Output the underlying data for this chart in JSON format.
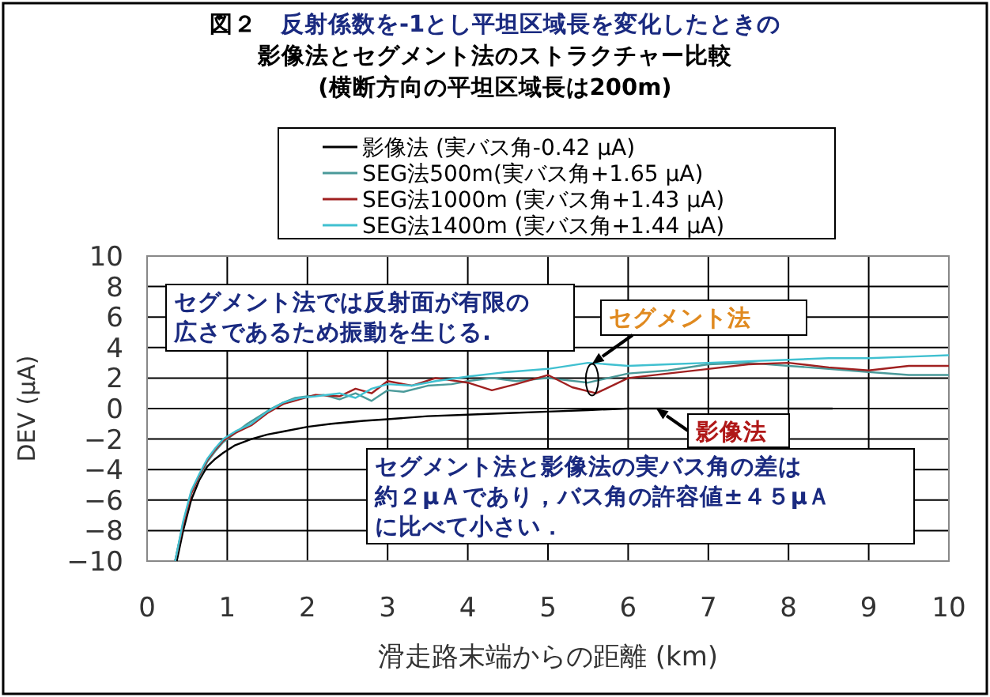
{
  "chart_data": {
    "type": "line",
    "title": "図２　反射係数を-1とし平坦区域長を変化したときの影像法とセグメント法のストラクチャー比較",
    "subtitle": "(横断方向の平坦区域長は200m)",
    "xlabel": "滑走路末端からの距離 (km)",
    "ylabel": "DEV (μA)",
    "xlim": [
      0,
      10
    ],
    "xticks": [
      0,
      1,
      2,
      3,
      4,
      5,
      6,
      7,
      8,
      9,
      10
    ],
    "ylim": [
      -10,
      10
    ],
    "yticks": [
      -10,
      -8,
      -6,
      -4,
      -2,
      0,
      2,
      4,
      6,
      8,
      10
    ],
    "grid": true,
    "legend": "top",
    "marker": "none",
    "line_style": "solid",
    "series": [
      {
        "name": "影像法 (実バス角-0.42 μA)",
        "color": "#000000",
        "x": [
          0.37,
          0.45,
          0.55,
          0.65,
          0.75,
          0.85,
          0.95,
          1.1,
          1.3,
          1.5,
          1.7,
          2.0,
          2.3,
          2.7,
          3.0,
          3.5,
          4.0,
          4.5,
          5.0,
          5.5,
          6.0,
          7.0,
          8.0,
          8.55
        ],
        "values": [
          -10,
          -8,
          -6,
          -4.7,
          -3.8,
          -3.3,
          -2.9,
          -2.4,
          -2.0,
          -1.7,
          -1.5,
          -1.2,
          -1.0,
          -0.8,
          -0.7,
          -0.5,
          -0.4,
          -0.3,
          -0.2,
          -0.1,
          0,
          0,
          0,
          0
        ]
      },
      {
        "name": "SEG法500m(実バス角+1.65 μA)",
        "color": "#4a9a9a",
        "x": [
          0.35,
          0.45,
          0.55,
          0.65,
          0.75,
          0.85,
          0.95,
          1.05,
          1.15,
          1.25,
          1.4,
          1.55,
          1.7,
          1.85,
          2.0,
          2.2,
          2.4,
          2.6,
          2.8,
          3.0,
          3.2,
          3.5,
          3.8,
          4.0,
          4.3,
          4.6,
          5.0,
          5.5,
          6.0,
          6.5,
          7.0,
          7.5,
          8.0,
          8.5,
          9.0,
          9.5,
          10
        ],
        "values": [
          -10,
          -7.5,
          -5.5,
          -4.5,
          -3.5,
          -2.8,
          -2.2,
          -1.8,
          -1.4,
          -1.0,
          -0.5,
          0,
          0.4,
          0.7,
          0.8,
          0.9,
          0.6,
          1.0,
          0.5,
          1.2,
          1.1,
          1.5,
          1.6,
          1.8,
          2.0,
          1.8,
          2.0,
          1.7,
          2.3,
          2.5,
          2.9,
          3.0,
          2.8,
          2.6,
          2.4,
          2.2,
          2.2
        ]
      },
      {
        "name": "SEG法1000m (実バス角+1.43 μA)",
        "color": "#a02020",
        "x": [
          0.35,
          0.45,
          0.55,
          0.65,
          0.75,
          0.85,
          0.95,
          1.1,
          1.3,
          1.5,
          1.7,
          1.9,
          2.1,
          2.4,
          2.6,
          2.8,
          3.0,
          3.3,
          3.6,
          4.0,
          4.3,
          4.6,
          5.0,
          5.3,
          5.6,
          6.0,
          6.5,
          7.0,
          7.5,
          8.0,
          8.5,
          9.0,
          9.5,
          10
        ],
        "values": [
          -10,
          -7.6,
          -5.6,
          -4.4,
          -3.4,
          -2.7,
          -2.1,
          -1.6,
          -1.1,
          -0.3,
          0.3,
          0.6,
          0.9,
          0.8,
          1.3,
          1.0,
          1.8,
          1.5,
          2.0,
          1.7,
          1.2,
          1.6,
          2.2,
          1.4,
          1.0,
          2.0,
          2.3,
          2.6,
          2.9,
          3.0,
          2.7,
          2.5,
          2.8,
          2.8
        ]
      },
      {
        "name": "SEG法1400m (実バス角+1.44 μA)",
        "color": "#40c0d0",
        "x": [
          0.35,
          0.45,
          0.55,
          0.65,
          0.75,
          0.85,
          0.95,
          1.1,
          1.3,
          1.5,
          1.7,
          1.9,
          2.1,
          2.4,
          2.6,
          2.8,
          3.0,
          3.3,
          3.6,
          4.0,
          4.5,
          5.0,
          5.5,
          6.0,
          6.5,
          7.0,
          7.5,
          8.0,
          8.5,
          9.0,
          9.5,
          10
        ],
        "values": [
          -10,
          -7.4,
          -5.4,
          -4.3,
          -3.3,
          -2.6,
          -2.0,
          -1.5,
          -1.0,
          -0.2,
          0.4,
          0.7,
          0.8,
          1.0,
          0.7,
          1.3,
          1.6,
          1.5,
          1.8,
          2.1,
          2.4,
          2.6,
          3.0,
          2.8,
          2.9,
          3.0,
          3.1,
          3.2,
          3.3,
          3.3,
          3.4,
          3.5
        ]
      }
    ],
    "annotations": [
      "セグメント法では反射面が有限の広さであるため振動を生じる.",
      {
        "text": "セグメント法",
        "x": 5.55,
        "y": 2.0
      },
      {
        "text": "影像法",
        "x": 6.35,
        "y": 0
      },
      "セグメント法と影像法の実バス角の差は約２μＡであり，バス角の許容値±４５μＡに比べて小さい．"
    ]
  }
}
